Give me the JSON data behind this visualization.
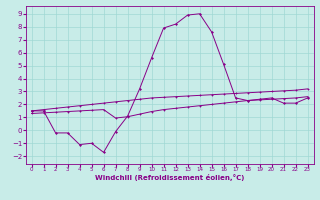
{
  "xlabel": "Windchill (Refroidissement éolien,°C)",
  "background_color": "#c8ece8",
  "grid_color": "#a0d8d4",
  "line_color": "#880088",
  "xlim": [
    -0.5,
    23.5
  ],
  "ylim": [
    -2.6,
    9.6
  ],
  "xticks": [
    0,
    1,
    2,
    3,
    4,
    5,
    6,
    7,
    8,
    9,
    10,
    11,
    12,
    13,
    14,
    15,
    16,
    17,
    18,
    19,
    20,
    21,
    22,
    23
  ],
  "yticks": [
    -2,
    -1,
    0,
    1,
    2,
    3,
    4,
    5,
    6,
    7,
    8,
    9
  ],
  "series1": [
    1.5,
    1.5,
    -0.2,
    -0.2,
    -1.1,
    -1.0,
    -1.7,
    -0.1,
    1.1,
    3.2,
    5.6,
    7.9,
    8.2,
    8.9,
    9.0,
    7.6,
    5.1,
    2.5,
    2.3,
    2.4,
    2.5,
    2.1,
    2.1,
    2.5
  ],
  "series2": [
    1.5,
    1.6,
    1.7,
    1.8,
    1.9,
    2.0,
    2.1,
    2.2,
    2.3,
    2.4,
    2.5,
    2.55,
    2.6,
    2.65,
    2.7,
    2.75,
    2.8,
    2.85,
    2.9,
    2.95,
    3.0,
    3.05,
    3.1,
    3.2
  ],
  "series3": [
    1.3,
    1.35,
    1.4,
    1.45,
    1.5,
    1.55,
    1.6,
    0.95,
    1.05,
    1.25,
    1.45,
    1.6,
    1.7,
    1.8,
    1.9,
    2.0,
    2.1,
    2.2,
    2.3,
    2.35,
    2.4,
    2.45,
    2.5,
    2.6
  ]
}
